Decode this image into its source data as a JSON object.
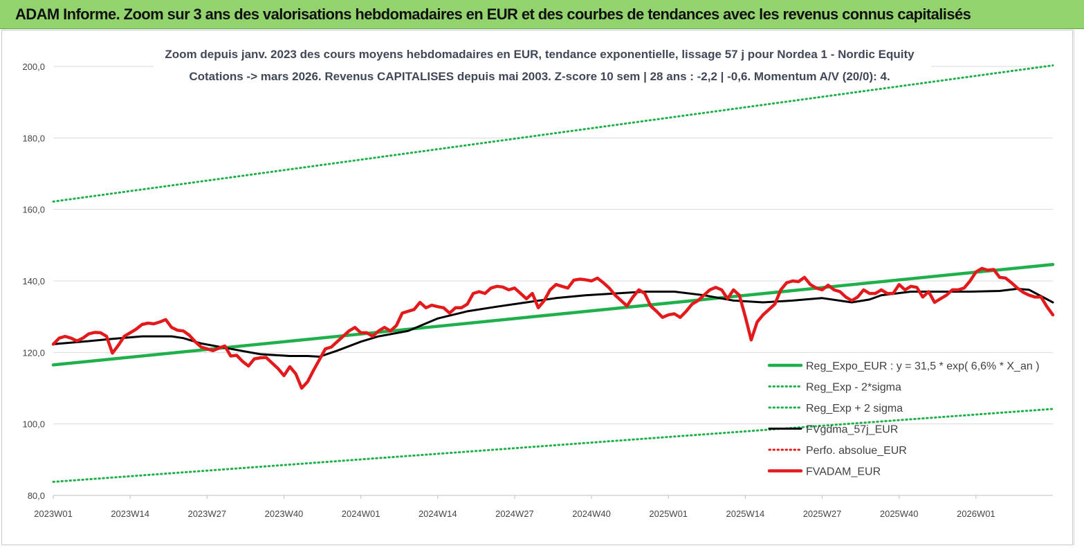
{
  "header": {
    "title": "ADAM Informe. Zoom sur 3 ans des valorisations hebdomadaires en EUR et des courbes de tendances avec les revenus connus capitalisés"
  },
  "chart_data": {
    "type": "line",
    "subtitle_line1": "Zoom depuis janv. 2023 des cours moyens hebdomadaires en EUR, tendance exponentielle, lissage 57 j pour Nordea 1 - Nordic Equity",
    "subtitle_line2": "Cotations -> mars 2026. Revenus CAPITALISES depuis mai 2003. Z-score 10 sem | 28 ans : -2,2 | -0,6. Momentum A/V (20/0): 4.",
    "x_labels": [
      "2023W01",
      "2023W14",
      "2023W27",
      "2023W40",
      "2024W01",
      "2024W14",
      "2024W27",
      "2024W40",
      "2025W01",
      "2025W14",
      "2025W27",
      "2025W40",
      "2026W01"
    ],
    "y_ticks": [
      "80,0",
      "100,0",
      "120,0",
      "140,0",
      "160,0",
      "180,0",
      "200,0"
    ],
    "ylim": [
      80,
      200
    ],
    "x_count": 170,
    "grid": true,
    "legend_position": "bottom-right",
    "colors": {
      "green": "#1fb04b",
      "black": "#000000",
      "red": "#e31a1c",
      "header_bg": "#92d36e"
    },
    "series": [
      {
        "name": "Reg_Expo_EUR : y = 31,5 * exp( 6,6% *  X_an )",
        "style": "solid-thick",
        "color": "#1fb04b",
        "points": [
          [
            0,
            116.5
          ],
          [
            169,
            144.6
          ]
        ]
      },
      {
        "name": "Reg_Exp - 2*sigma",
        "style": "dotted",
        "color": "#1fb04b",
        "points": [
          [
            0,
            83.8
          ],
          [
            169,
            104.2
          ]
        ]
      },
      {
        "name": "Reg_Exp + 2 sigma",
        "style": "dotted",
        "color": "#1fb04b",
        "points": [
          [
            0,
            162.2
          ],
          [
            169,
            200.3
          ]
        ]
      },
      {
        "name": "FVgdma_57j_EUR",
        "style": "solid",
        "color": "#000000",
        "points": [
          [
            0,
            122.3
          ],
          [
            5,
            123.0
          ],
          [
            10,
            123.8
          ],
          [
            15,
            124.5
          ],
          [
            20,
            124.5
          ],
          [
            22,
            124.0
          ],
          [
            25,
            122.5
          ],
          [
            30,
            121.0
          ],
          [
            35,
            119.5
          ],
          [
            40,
            119.0
          ],
          [
            43,
            119.0
          ],
          [
            45,
            118.8
          ],
          [
            48,
            120.5
          ],
          [
            52,
            123.0
          ],
          [
            55,
            124.5
          ],
          [
            60,
            126.0
          ],
          [
            65,
            129.5
          ],
          [
            70,
            131.5
          ],
          [
            75,
            132.8
          ],
          [
            80,
            134.0
          ],
          [
            85,
            135.2
          ],
          [
            90,
            136.0
          ],
          [
            95,
            136.5
          ],
          [
            100,
            137.0
          ],
          [
            105,
            137.0
          ],
          [
            110,
            136.0
          ],
          [
            115,
            134.5
          ],
          [
            120,
            134.0
          ],
          [
            125,
            134.5
          ],
          [
            130,
            135.2
          ],
          [
            135,
            134.0
          ],
          [
            138,
            134.8
          ],
          [
            140,
            136.0
          ],
          [
            145,
            137.0
          ],
          [
            150,
            137.0
          ],
          [
            155,
            137.0
          ],
          [
            160,
            137.2
          ],
          [
            163,
            137.8
          ],
          [
            165,
            137.5
          ],
          [
            169,
            134.0
          ]
        ]
      },
      {
        "name": "Perfo. absolue_EUR",
        "style": "dotted",
        "color": "#e31a1c",
        "points": []
      },
      {
        "name": "FVADAM_EUR",
        "style": "solid-thick",
        "color": "#e31a1c",
        "points": [
          [
            0,
            122.3
          ],
          [
            1,
            124.0
          ],
          [
            2,
            124.5
          ],
          [
            3,
            124.0
          ],
          [
            4,
            123.2
          ],
          [
            5,
            124.0
          ],
          [
            6,
            125.2
          ],
          [
            7,
            125.6
          ],
          [
            8,
            125.5
          ],
          [
            9,
            124.5
          ],
          [
            10,
            119.8
          ],
          [
            11,
            122.0
          ],
          [
            12,
            124.5
          ],
          [
            13,
            125.5
          ],
          [
            14,
            126.5
          ],
          [
            15,
            127.8
          ],
          [
            16,
            128.2
          ],
          [
            17,
            128.0
          ],
          [
            18,
            128.5
          ],
          [
            19,
            129.2
          ],
          [
            20,
            127.0
          ],
          [
            21,
            126.2
          ],
          [
            22,
            126.0
          ],
          [
            23,
            124.8
          ],
          [
            24,
            123.0
          ],
          [
            25,
            121.5
          ],
          [
            26,
            121.0
          ],
          [
            27,
            120.5
          ],
          [
            28,
            121.2
          ],
          [
            29,
            121.8
          ],
          [
            30,
            119.0
          ],
          [
            31,
            119.2
          ],
          [
            32,
            117.5
          ],
          [
            33,
            116.2
          ],
          [
            34,
            118.2
          ],
          [
            35,
            118.5
          ],
          [
            36,
            118.6
          ],
          [
            37,
            117.0
          ],
          [
            38,
            115.5
          ],
          [
            39,
            113.5
          ],
          [
            40,
            116.0
          ],
          [
            41,
            114.0
          ],
          [
            42,
            110.0
          ],
          [
            43,
            111.8
          ],
          [
            44,
            115.0
          ],
          [
            45,
            118.0
          ],
          [
            46,
            121.0
          ],
          [
            47,
            121.5
          ],
          [
            48,
            123.0
          ],
          [
            49,
            124.5
          ],
          [
            50,
            126.0
          ],
          [
            51,
            127.0
          ],
          [
            52,
            125.5
          ],
          [
            53,
            125.5
          ],
          [
            54,
            124.5
          ],
          [
            55,
            126.0
          ],
          [
            56,
            127.0
          ],
          [
            57,
            126.0
          ],
          [
            58,
            127.5
          ],
          [
            59,
            131.0
          ],
          [
            60,
            131.5
          ],
          [
            61,
            132.0
          ],
          [
            62,
            134.0
          ],
          [
            63,
            132.5
          ],
          [
            64,
            133.2
          ],
          [
            65,
            132.8
          ],
          [
            66,
            132.5
          ],
          [
            67,
            131.0
          ],
          [
            68,
            132.5
          ],
          [
            69,
            132.5
          ],
          [
            70,
            133.5
          ],
          [
            71,
            136.5
          ],
          [
            72,
            137.0
          ],
          [
            73,
            136.5
          ],
          [
            74,
            138.0
          ],
          [
            75,
            138.5
          ],
          [
            76,
            138.3
          ],
          [
            77,
            137.5
          ],
          [
            78,
            138.0
          ],
          [
            79,
            136.5
          ],
          [
            80,
            135.0
          ],
          [
            81,
            136.5
          ],
          [
            82,
            132.5
          ],
          [
            83,
            134.5
          ],
          [
            84,
            137.5
          ],
          [
            85,
            139.0
          ],
          [
            86,
            138.5
          ],
          [
            87,
            138.0
          ],
          [
            88,
            140.2
          ],
          [
            89,
            140.5
          ],
          [
            90,
            140.3
          ],
          [
            91,
            140.0
          ],
          [
            92,
            140.8
          ],
          [
            93,
            139.5
          ],
          [
            94,
            138.0
          ],
          [
            95,
            136.0
          ],
          [
            96,
            134.5
          ],
          [
            97,
            133.0
          ],
          [
            98,
            135.5
          ],
          [
            99,
            137.5
          ],
          [
            100,
            136.5
          ],
          [
            101,
            133.0
          ],
          [
            102,
            131.5
          ],
          [
            103,
            129.8
          ],
          [
            104,
            130.5
          ],
          [
            105,
            130.8
          ],
          [
            106,
            129.8
          ],
          [
            107,
            131.5
          ],
          [
            108,
            133.5
          ],
          [
            109,
            134.5
          ],
          [
            110,
            136.0
          ],
          [
            111,
            137.5
          ],
          [
            112,
            138.2
          ],
          [
            113,
            137.5
          ],
          [
            114,
            135.0
          ],
          [
            115,
            137.5
          ],
          [
            116,
            136.0
          ],
          [
            117,
            130.0
          ],
          [
            118,
            123.5
          ],
          [
            119,
            128.5
          ],
          [
            120,
            130.5
          ],
          [
            121,
            132.0
          ],
          [
            122,
            133.5
          ],
          [
            123,
            137.5
          ],
          [
            124,
            139.5
          ],
          [
            125,
            140.0
          ],
          [
            126,
            139.8
          ],
          [
            127,
            141.0
          ],
          [
            128,
            139.0
          ],
          [
            129,
            138.0
          ],
          [
            130,
            137.5
          ],
          [
            131,
            138.8
          ],
          [
            132,
            137.5
          ],
          [
            133,
            137.0
          ],
          [
            134,
            135.5
          ],
          [
            135,
            134.5
          ],
          [
            136,
            135.5
          ],
          [
            137,
            137.5
          ],
          [
            138,
            136.5
          ],
          [
            139,
            136.5
          ],
          [
            140,
            137.5
          ],
          [
            141,
            136.5
          ],
          [
            142,
            136.5
          ],
          [
            143,
            139.0
          ],
          [
            144,
            137.5
          ],
          [
            145,
            138.5
          ],
          [
            146,
            138.2
          ],
          [
            147,
            135.5
          ],
          [
            148,
            137.0
          ],
          [
            149,
            134.0
          ],
          [
            150,
            135.0
          ],
          [
            151,
            136.0
          ],
          [
            152,
            137.5
          ],
          [
            153,
            137.5
          ],
          [
            154,
            138.0
          ],
          [
            155,
            140.0
          ],
          [
            156,
            142.5
          ],
          [
            157,
            143.5
          ],
          [
            158,
            143.0
          ],
          [
            159,
            143.2
          ],
          [
            160,
            141.0
          ],
          [
            161,
            140.8
          ],
          [
            162,
            139.5
          ],
          [
            163,
            138.0
          ],
          [
            164,
            136.8
          ],
          [
            165,
            136.0
          ],
          [
            166,
            135.5
          ],
          [
            167,
            135.5
          ],
          [
            168,
            132.8
          ],
          [
            169,
            130.5
          ]
        ]
      }
    ]
  }
}
